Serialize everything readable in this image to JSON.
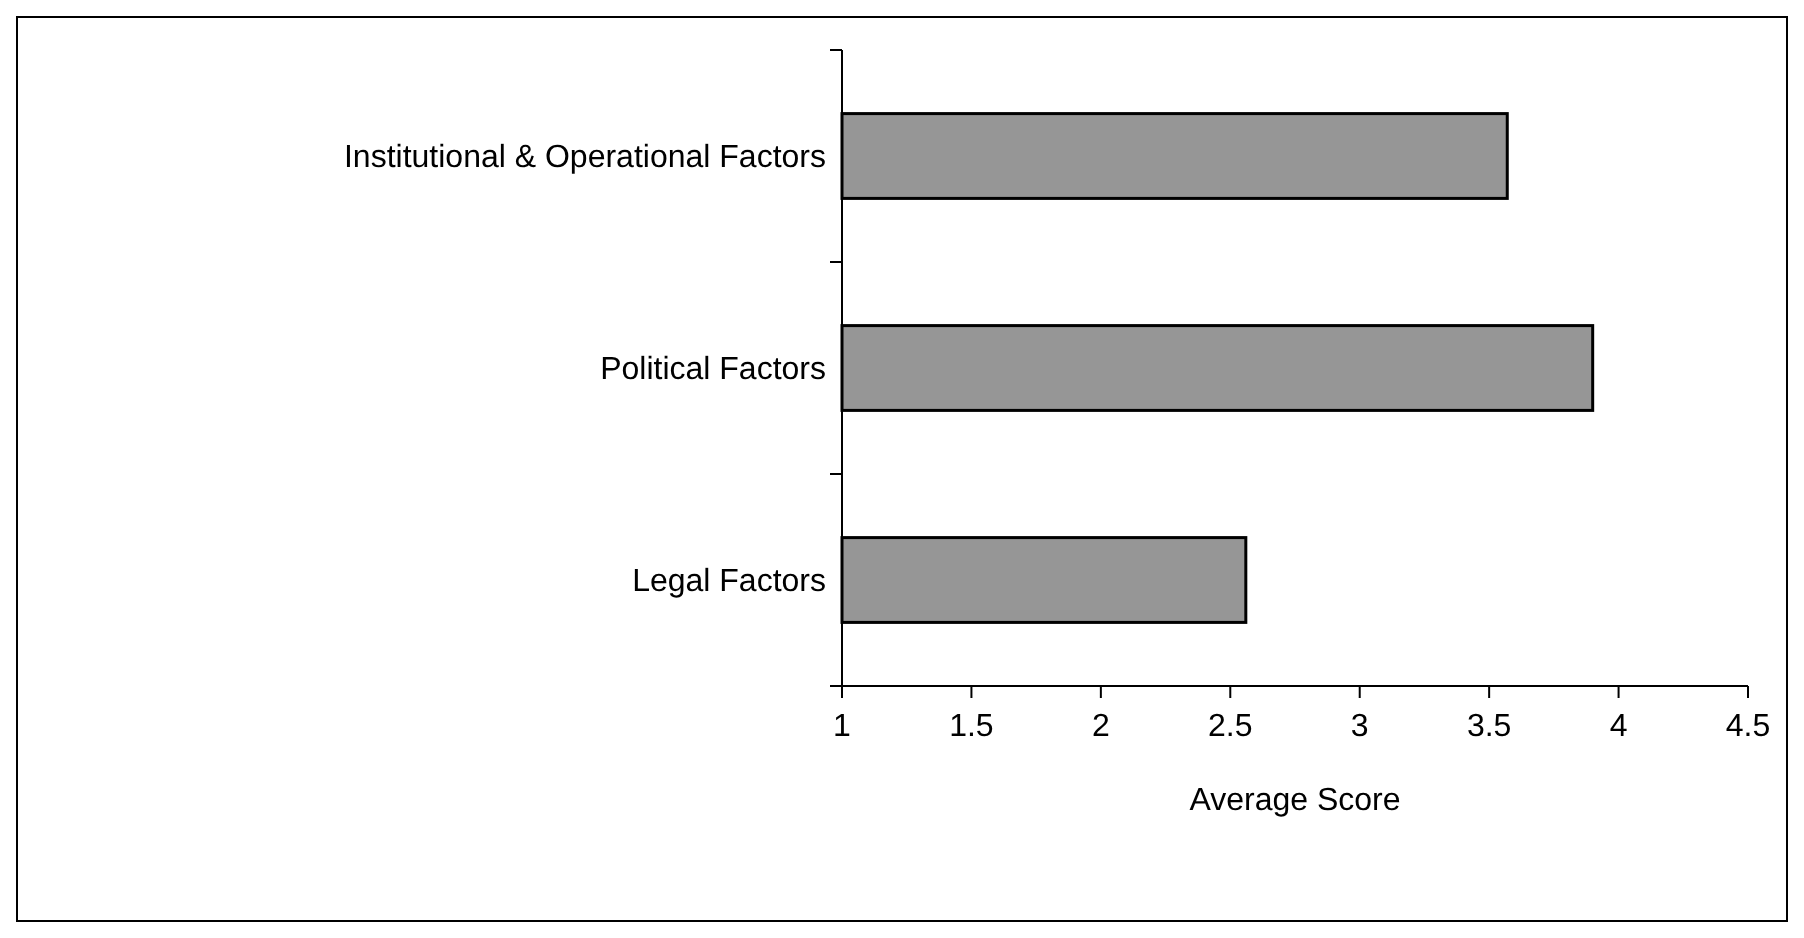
{
  "chart_data": {
    "type": "bar",
    "orientation": "horizontal",
    "xlabel": "Average Score",
    "categories": [
      "Institutional & Operational Factors",
      "Political Factors",
      "Legal Factors"
    ],
    "values": [
      3.57,
      3.9,
      2.56
    ],
    "color": "#969696",
    "xlim": [
      1,
      4.5
    ],
    "xticks": [
      1,
      1.5,
      2,
      2.5,
      3,
      3.5,
      4,
      4.5
    ],
    "grid": false
  }
}
